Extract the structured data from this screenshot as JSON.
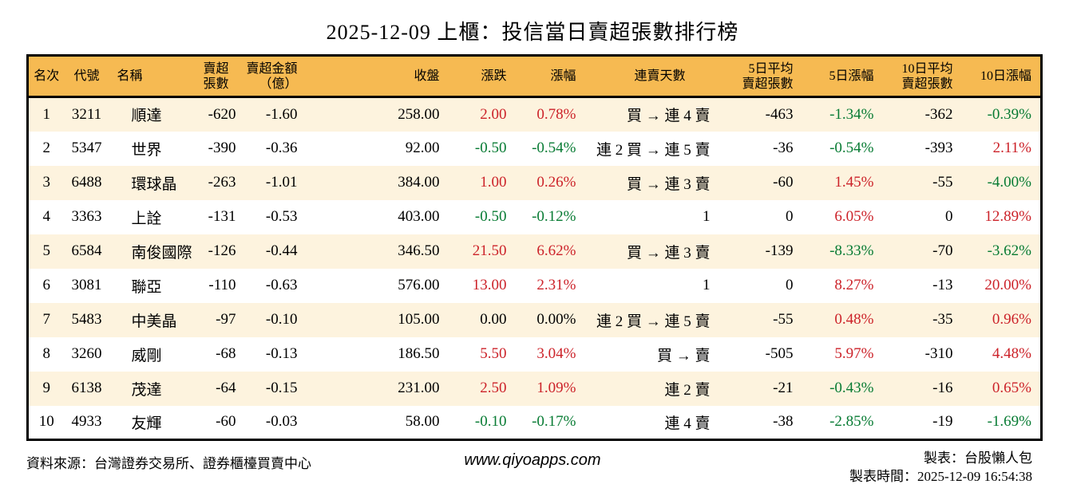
{
  "title": "2025-12-09 上櫃：投信當日賣超張數排行榜",
  "colors": {
    "up_red": "#cc2229",
    "down_green": "#077b33",
    "header_bg": "#f6ba52",
    "row_stripe": "#fdf3de",
    "border": "#000000"
  },
  "chart_data": {
    "type": "table",
    "title": "2025-12-09 上櫃：投信當日賣超張數排行榜",
    "columns": [
      {
        "lines": [
          "名次"
        ]
      },
      {
        "lines": [
          "代號"
        ]
      },
      {
        "lines": [
          "名稱"
        ]
      },
      {
        "lines": [
          "賣超張數"
        ]
      },
      {
        "lines": [
          "賣超金額",
          "（億）"
        ]
      },
      {
        "lines": [
          "收盤"
        ]
      },
      {
        "lines": [
          "漲跌"
        ]
      },
      {
        "lines": [
          "漲幅"
        ]
      },
      {
        "lines": [
          "連賣天數"
        ]
      },
      {
        "lines": [
          "5日平均",
          "賣超張數"
        ]
      },
      {
        "lines": [
          "5日漲幅"
        ]
      },
      {
        "lines": [
          "10日平均",
          "賣超張數"
        ]
      },
      {
        "lines": [
          "10日漲幅"
        ]
      }
    ],
    "rows": [
      {
        "rank": "1",
        "code": "3211",
        "name": "順達",
        "sell_shares": "-620",
        "sell_amount": "-1.60",
        "close": "258.00",
        "change": "2.00",
        "change_dir": "up",
        "change_pct": "0.78%",
        "change_pct_dir": "up",
        "streak": "買 → 連 4 賣",
        "avg5": "-463",
        "pct5": "-1.34%",
        "pct5_dir": "down",
        "avg10": "-362",
        "pct10": "-0.39%",
        "pct10_dir": "down"
      },
      {
        "rank": "2",
        "code": "5347",
        "name": "世界",
        "sell_shares": "-390",
        "sell_amount": "-0.36",
        "close": "92.00",
        "change": "-0.50",
        "change_dir": "down",
        "change_pct": "-0.54%",
        "change_pct_dir": "down",
        "streak": "連 2 買 → 連 5 賣",
        "avg5": "-36",
        "pct5": "-0.54%",
        "pct5_dir": "down",
        "avg10": "-393",
        "pct10": "2.11%",
        "pct10_dir": "up"
      },
      {
        "rank": "3",
        "code": "6488",
        "name": "環球晶",
        "sell_shares": "-263",
        "sell_amount": "-1.01",
        "close": "384.00",
        "change": "1.00",
        "change_dir": "up",
        "change_pct": "0.26%",
        "change_pct_dir": "up",
        "streak": "買 → 連 3 賣",
        "avg5": "-60",
        "pct5": "1.45%",
        "pct5_dir": "up",
        "avg10": "-55",
        "pct10": "-4.00%",
        "pct10_dir": "down"
      },
      {
        "rank": "4",
        "code": "3363",
        "name": "上詮",
        "sell_shares": "-131",
        "sell_amount": "-0.53",
        "close": "403.00",
        "change": "-0.50",
        "change_dir": "down",
        "change_pct": "-0.12%",
        "change_pct_dir": "down",
        "streak": "1",
        "avg5": "0",
        "pct5": "6.05%",
        "pct5_dir": "up",
        "avg10": "0",
        "pct10": "12.89%",
        "pct10_dir": "up"
      },
      {
        "rank": "5",
        "code": "6584",
        "name": "南俊國際",
        "sell_shares": "-126",
        "sell_amount": "-0.44",
        "close": "346.50",
        "change": "21.50",
        "change_dir": "up",
        "change_pct": "6.62%",
        "change_pct_dir": "up",
        "streak": "買 → 連 3 賣",
        "avg5": "-139",
        "pct5": "-8.33%",
        "pct5_dir": "down",
        "avg10": "-70",
        "pct10": "-3.62%",
        "pct10_dir": "down"
      },
      {
        "rank": "6",
        "code": "3081",
        "name": "聯亞",
        "sell_shares": "-110",
        "sell_amount": "-0.63",
        "close": "576.00",
        "change": "13.00",
        "change_dir": "up",
        "change_pct": "2.31%",
        "change_pct_dir": "up",
        "streak": "1",
        "avg5": "0",
        "pct5": "8.27%",
        "pct5_dir": "up",
        "avg10": "-13",
        "pct10": "20.00%",
        "pct10_dir": "up"
      },
      {
        "rank": "7",
        "code": "5483",
        "name": "中美晶",
        "sell_shares": "-97",
        "sell_amount": "-0.10",
        "close": "105.00",
        "change": "0.00",
        "change_dir": "flat",
        "change_pct": "0.00%",
        "change_pct_dir": "flat",
        "streak": "連 2 買 → 連 5 賣",
        "avg5": "-55",
        "pct5": "0.48%",
        "pct5_dir": "up",
        "avg10": "-35",
        "pct10": "0.96%",
        "pct10_dir": "up"
      },
      {
        "rank": "8",
        "code": "3260",
        "name": "威剛",
        "sell_shares": "-68",
        "sell_amount": "-0.13",
        "close": "186.50",
        "change": "5.50",
        "change_dir": "up",
        "change_pct": "3.04%",
        "change_pct_dir": "up",
        "streak": "買 → 賣",
        "avg5": "-505",
        "pct5": "5.97%",
        "pct5_dir": "up",
        "avg10": "-310",
        "pct10": "4.48%",
        "pct10_dir": "up"
      },
      {
        "rank": "9",
        "code": "6138",
        "name": "茂達",
        "sell_shares": "-64",
        "sell_amount": "-0.15",
        "close": "231.00",
        "change": "2.50",
        "change_dir": "up",
        "change_pct": "1.09%",
        "change_pct_dir": "up",
        "streak": "連 2 賣",
        "avg5": "-21",
        "pct5": "-0.43%",
        "pct5_dir": "down",
        "avg10": "-16",
        "pct10": "0.65%",
        "pct10_dir": "up"
      },
      {
        "rank": "10",
        "code": "4933",
        "name": "友輝",
        "sell_shares": "-60",
        "sell_amount": "-0.03",
        "close": "58.00",
        "change": "-0.10",
        "change_dir": "down",
        "change_pct": "-0.17%",
        "change_pct_dir": "down",
        "streak": "連 4 賣",
        "avg5": "-38",
        "pct5": "-2.85%",
        "pct5_dir": "down",
        "avg10": "-19",
        "pct10": "-1.69%",
        "pct10_dir": "down"
      }
    ]
  },
  "footer": {
    "source": "資料來源：台灣證券交易所、證券櫃檯買賣中心",
    "site": "www.qiyoapps.com",
    "maker": "製表：台股懶人包",
    "made_at": "製表時間：2025-12-09 16:54:38"
  }
}
